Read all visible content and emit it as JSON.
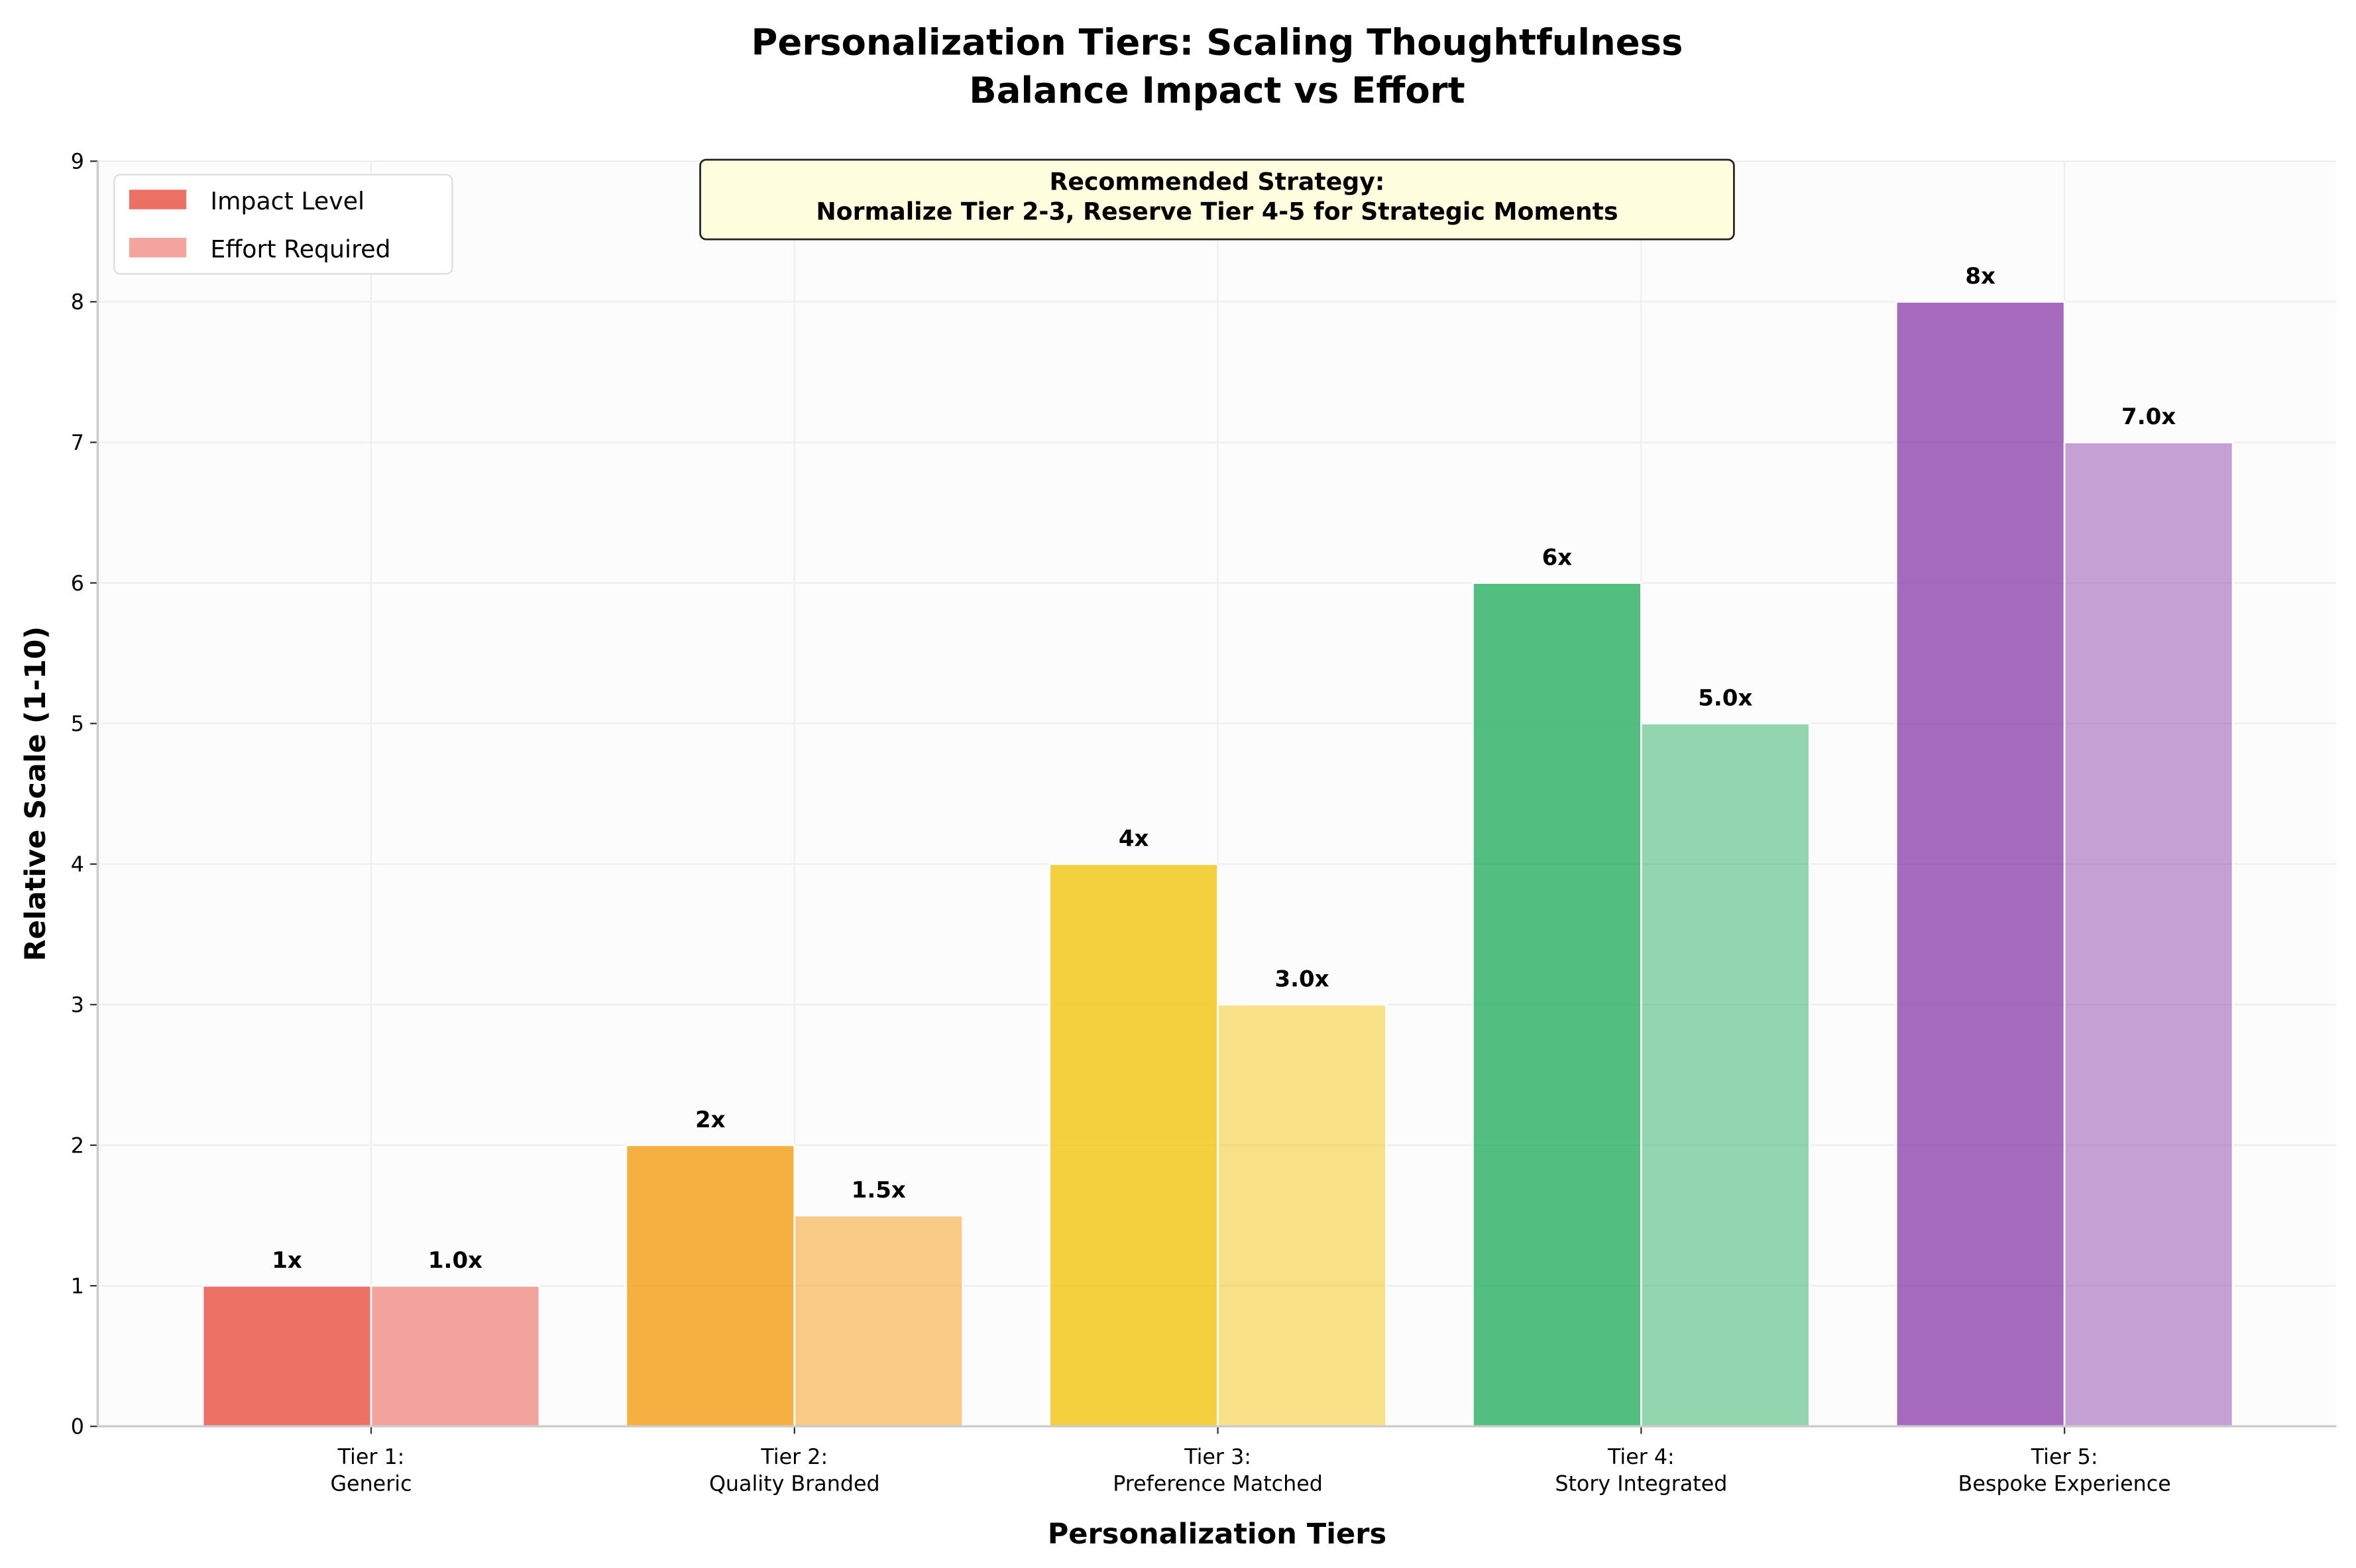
{
  "chart_data": {
    "type": "bar",
    "title": "Personalization Tiers: Scaling Thoughtfulness\nBalance Impact vs Effort",
    "xlabel": "Personalization Tiers",
    "ylabel": "Relative Scale (1-10)",
    "ylim": [
      0,
      9
    ],
    "yticks": [
      0,
      1,
      2,
      3,
      4,
      5,
      6,
      7,
      8,
      9
    ],
    "grid": true,
    "legend_position": "top-left",
    "categories": [
      "Tier 1:\nGeneric",
      "Tier 2:\nQuality Branded",
      "Tier 3:\nPreference Matched",
      "Tier 4:\nStory Integrated",
      "Tier 5:\nBespoke Experience"
    ],
    "colors": [
      "#E74C3C",
      "#F39C12",
      "#F1C40F",
      "#27AE60",
      "#8E44AD"
    ],
    "series": [
      {
        "name": "Impact Level",
        "values": [
          1,
          2,
          4,
          6,
          8
        ],
        "labels": [
          "1x",
          "2x",
          "4x",
          "6x",
          "8x"
        ],
        "opacity": 0.8
      },
      {
        "name": "Effort Required",
        "values": [
          1.0,
          1.5,
          3.0,
          5.0,
          7.0
        ],
        "labels": [
          "1.0x",
          "1.5x",
          "3.0x",
          "5.0x",
          "7.0x"
        ],
        "opacity": 0.5
      }
    ],
    "annotation": "Recommended Strategy:\nNormalize Tier 2-3, Reserve Tier 4-5 for Strategic Moments"
  }
}
